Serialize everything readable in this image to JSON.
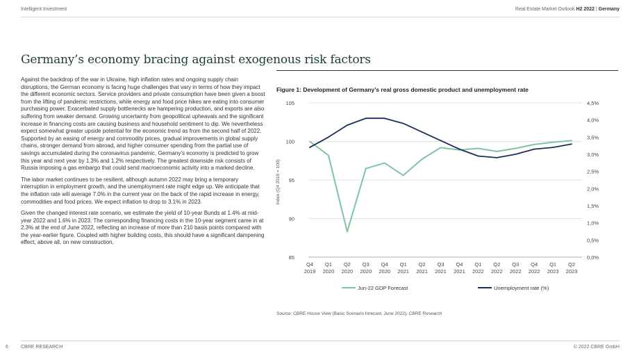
{
  "header": {
    "left": "Intelligent  Investment",
    "right_prefix": "Real Estate Market Outlook",
    "right_bold": "H2 2022",
    "right_sep": "|",
    "right_country": "Germany"
  },
  "page_title": "Germany’s economy bracing against exogenous risk factors",
  "paragraphs": [
    "Against the backdrop of the war in Ukraine, high inflation rates and ongoing supply chain disruptions, the German economy is facing huge challenges that vary in terms of how they impact the different economic sectors. Service providers and private consumption have been given a boost from the lifting of pandemic restrictions, while energy and food price hikes are eating into consumer purchasing power. Exacerbated supply bottlenecks are hampering production, and exports are also suffering from weaker demand. Growing uncertainty from geopolitical upheavals and the significant increase in financing costs are causing business and household sentiment to dip. We nevertheless expect somewhat greater upside potential for the economic trend as from the second half of 2022. Supported by an easing of energy and commodity prices, gradual improvements in global supply chains, stronger demand from abroad, and higher consumer spending from the partial use of savings accumulated during the coronavirus pandemic, Germany’s economy is predicted to grow this year and next year by 1.3% and 1.2% respectively. The greatest downside risk consists of Russia imposing a gas embargo that could send macroeconomic activity into a marked decline.",
    "The labor market continues to be resilient, although autumn 2022 may bring a temporary interruption in employment growth, and the unemployment rate might edge up. We anticipate that the inflation rate will average 7.0% in the current year on the back of the rapid increase in energy, commodities and food prices. We expect inflation to drop to 3.1% in 2023.",
    "Given the changed interest rate scenario, we estimate the yield of 10-year Bunds at 1.4% at mid-year 2022 and 1.6% in 2023. The corresponding financing costs in the 10-year segment came in at 2.3% at the end of June 2022, reflecting an increase of more than 210 basis points compared with the year-earlier figure. Coupled with higher building costs, this should have a significant dampening effect, above all, on new construction."
  ],
  "figure": {
    "title": "Figure 1:  Development of Germany’s real gross domestic product and unemployment rate",
    "source": "Source: CBRE House View (Basic Scenario forecast, June 2022), CBRE Research"
  },
  "chart_data": {
    "type": "line",
    "categories_q": [
      "Q4",
      "Q1",
      "Q2",
      "Q3",
      "Q4",
      "Q1",
      "Q2",
      "Q3",
      "Q4",
      "Q1",
      "Q2",
      "Q3",
      "Q4",
      "Q1",
      "Q2"
    ],
    "categories_y": [
      "2019",
      "2020",
      "2020",
      "2020",
      "2020",
      "2021",
      "2021",
      "2021",
      "2021",
      "2022",
      "2022",
      "2022",
      "2022",
      "2023",
      "2023"
    ],
    "ylabel_left": "Index (Q4 2019 = 100)",
    "left_axis": {
      "min": 85,
      "max": 105,
      "ticks": [
        "85",
        "90",
        "95",
        "100",
        "105"
      ]
    },
    "right_axis": {
      "min": 0,
      "max": 4.5,
      "ticks": [
        "0,0%",
        "0,5%",
        "1,0%",
        "1,5%",
        "2,0%",
        "2,5%",
        "3,0%",
        "3,5%",
        "4,0%",
        "4,5%"
      ]
    },
    "series": [
      {
        "name": "Jun-22 GDP Forecast",
        "axis": "left",
        "color": "#7fc4a0",
        "values": [
          100.0,
          98.2,
          88.3,
          96.5,
          97.2,
          95.6,
          97.7,
          99.2,
          98.9,
          99.1,
          98.7,
          99.1,
          99.6,
          99.9,
          100.1
        ]
      },
      {
        "name": "Unemployment rate (%)",
        "axis": "right",
        "color": "#1a2f5a",
        "values": [
          3.2,
          3.5,
          3.85,
          4.05,
          4.05,
          3.9,
          3.65,
          3.4,
          3.15,
          2.95,
          2.9,
          3.0,
          3.15,
          3.2,
          3.3
        ]
      }
    ]
  },
  "footer": {
    "page": "6",
    "org": "CBRE RESEARCH",
    "copyright": "© 2022 CBRE GmbH"
  }
}
